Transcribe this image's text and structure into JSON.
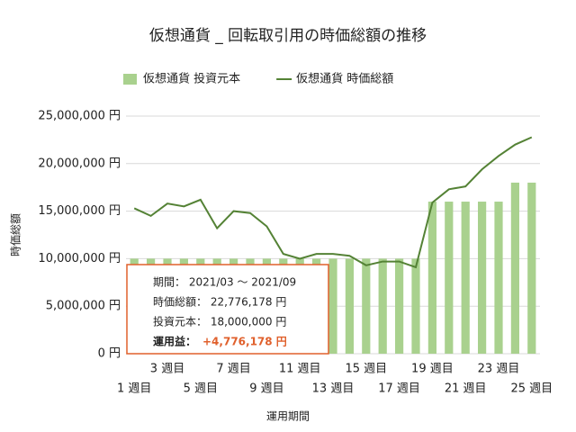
{
  "chart_data": {
    "type": "bar-line",
    "title": "仮想通貨 _ 回転取引用の時価総額の推移",
    "x_label": "運用期間",
    "y_label": "時価総額",
    "categories": [
      "1 週目",
      null,
      "3 週目",
      null,
      "5 週目",
      null,
      "7 週目",
      null,
      "9 週目",
      null,
      "11 週目",
      null,
      "13 週目",
      null,
      "15 週目",
      null,
      "17 週目",
      null,
      "19 週目",
      null,
      "21 週目",
      null,
      "23 週目",
      null,
      "25 週目"
    ],
    "series": [
      {
        "name": "仮想通貨 投資元本",
        "type": "bar",
        "color": "#a9d18e",
        "values": [
          10000000,
          10000000,
          10000000,
          10000000,
          10000000,
          10000000,
          10000000,
          10000000,
          10000000,
          10000000,
          10000000,
          10000000,
          10000000,
          10000000,
          10000000,
          10000000,
          10000000,
          10000000,
          16000000,
          16000000,
          16000000,
          16000000,
          16000000,
          18000000,
          18000000
        ]
      },
      {
        "name": "仮想通貨 時価総額",
        "type": "line",
        "color": "#548235",
        "values": [
          15300000,
          14500000,
          15800000,
          15500000,
          16200000,
          13200000,
          15000000,
          14800000,
          13400000,
          10500000,
          10000000,
          10500000,
          10500000,
          10300000,
          9300000,
          9700000,
          9700000,
          9100000,
          15900000,
          17300000,
          17600000,
          19400000,
          20800000,
          22000000,
          22776178
        ]
      }
    ],
    "ylim": [
      0,
      25000000
    ],
    "yticks": [
      {
        "value": 0,
        "label": "0 円"
      },
      {
        "value": 5000000,
        "label": "5,000,000 円"
      },
      {
        "value": 10000000,
        "label": "10,000,000 円"
      },
      {
        "value": 15000000,
        "label": "15,000,000 円"
      },
      {
        "value": 20000000,
        "label": "20,000,000 円"
      },
      {
        "value": 25000000,
        "label": "25,000,000 円"
      }
    ],
    "grid": true
  },
  "tooltip": {
    "period": "期間： 2021/03 ～ 2021/09",
    "market_value": "時価総額： 22,776,178 円",
    "principal": "投資元本： 18,000,000 円",
    "profit_label": "運用益：",
    "profit_value": "+4,776,178 円"
  }
}
